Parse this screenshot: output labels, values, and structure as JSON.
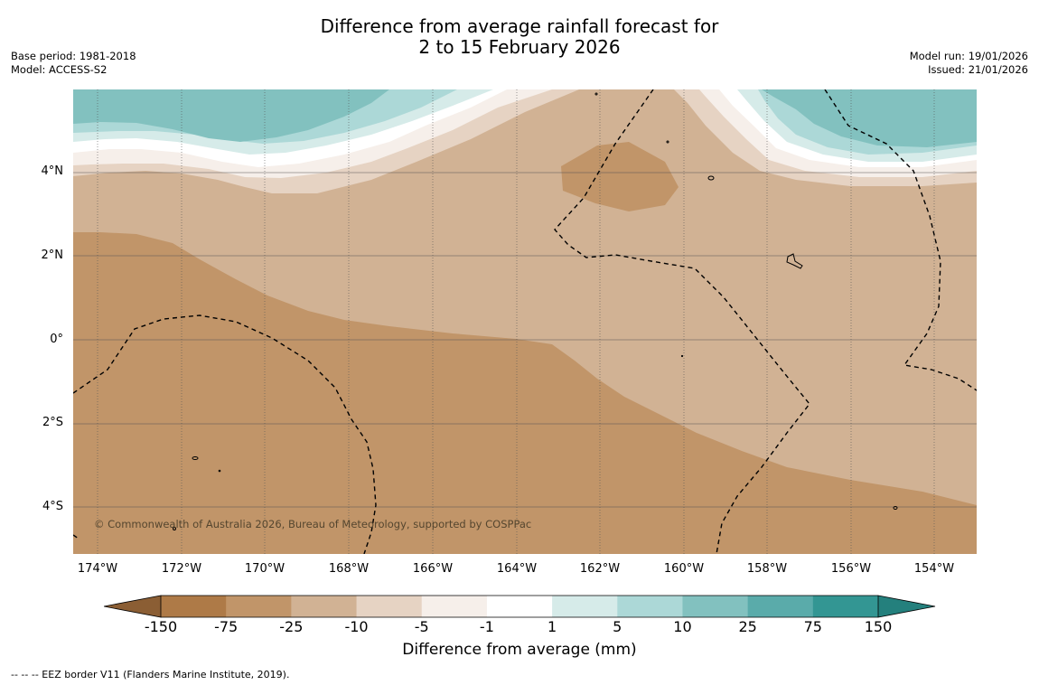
{
  "title": {
    "line1": "Difference from average rainfall forecast for",
    "line2": "2 to 15 February 2026"
  },
  "meta": {
    "base_period": "Base period: 1981-2018",
    "model": "Model: ACCESS-S2",
    "model_run": "Model run: 19/01/2026",
    "issued": "Issued: 21/01/2026"
  },
  "axes": {
    "lat_labels": [
      "4°N",
      "2°N",
      "0°",
      "2°S",
      "4°S"
    ],
    "lon_labels": [
      "174°W",
      "172°W",
      "170°W",
      "168°W",
      "166°W",
      "164°W",
      "162°W",
      "160°W",
      "158°W",
      "156°W",
      "154°W"
    ]
  },
  "copyright": "© Commonwealth of Australia 2026, Bureau of Meteorology, supported by COSPPac",
  "legend": {
    "ticks": [
      "-150",
      "-75",
      "-25",
      "-10",
      "-5",
      "-1",
      "1",
      "5",
      "10",
      "25",
      "75",
      "150"
    ],
    "colors": [
      "#8b5e34",
      "#ae7a47",
      "#c19569",
      "#d1b294",
      "#e6d3c3",
      "#f6efea",
      "#ffffff",
      "#d6ebe9",
      "#acd8d7",
      "#82c1bf",
      "#5aabaa",
      "#339693",
      "#24807d"
    ],
    "label": "Difference from average (mm)"
  },
  "footer": "--  --  -- EEZ border V11 (Flanders Marine Institute, 2019)."
}
